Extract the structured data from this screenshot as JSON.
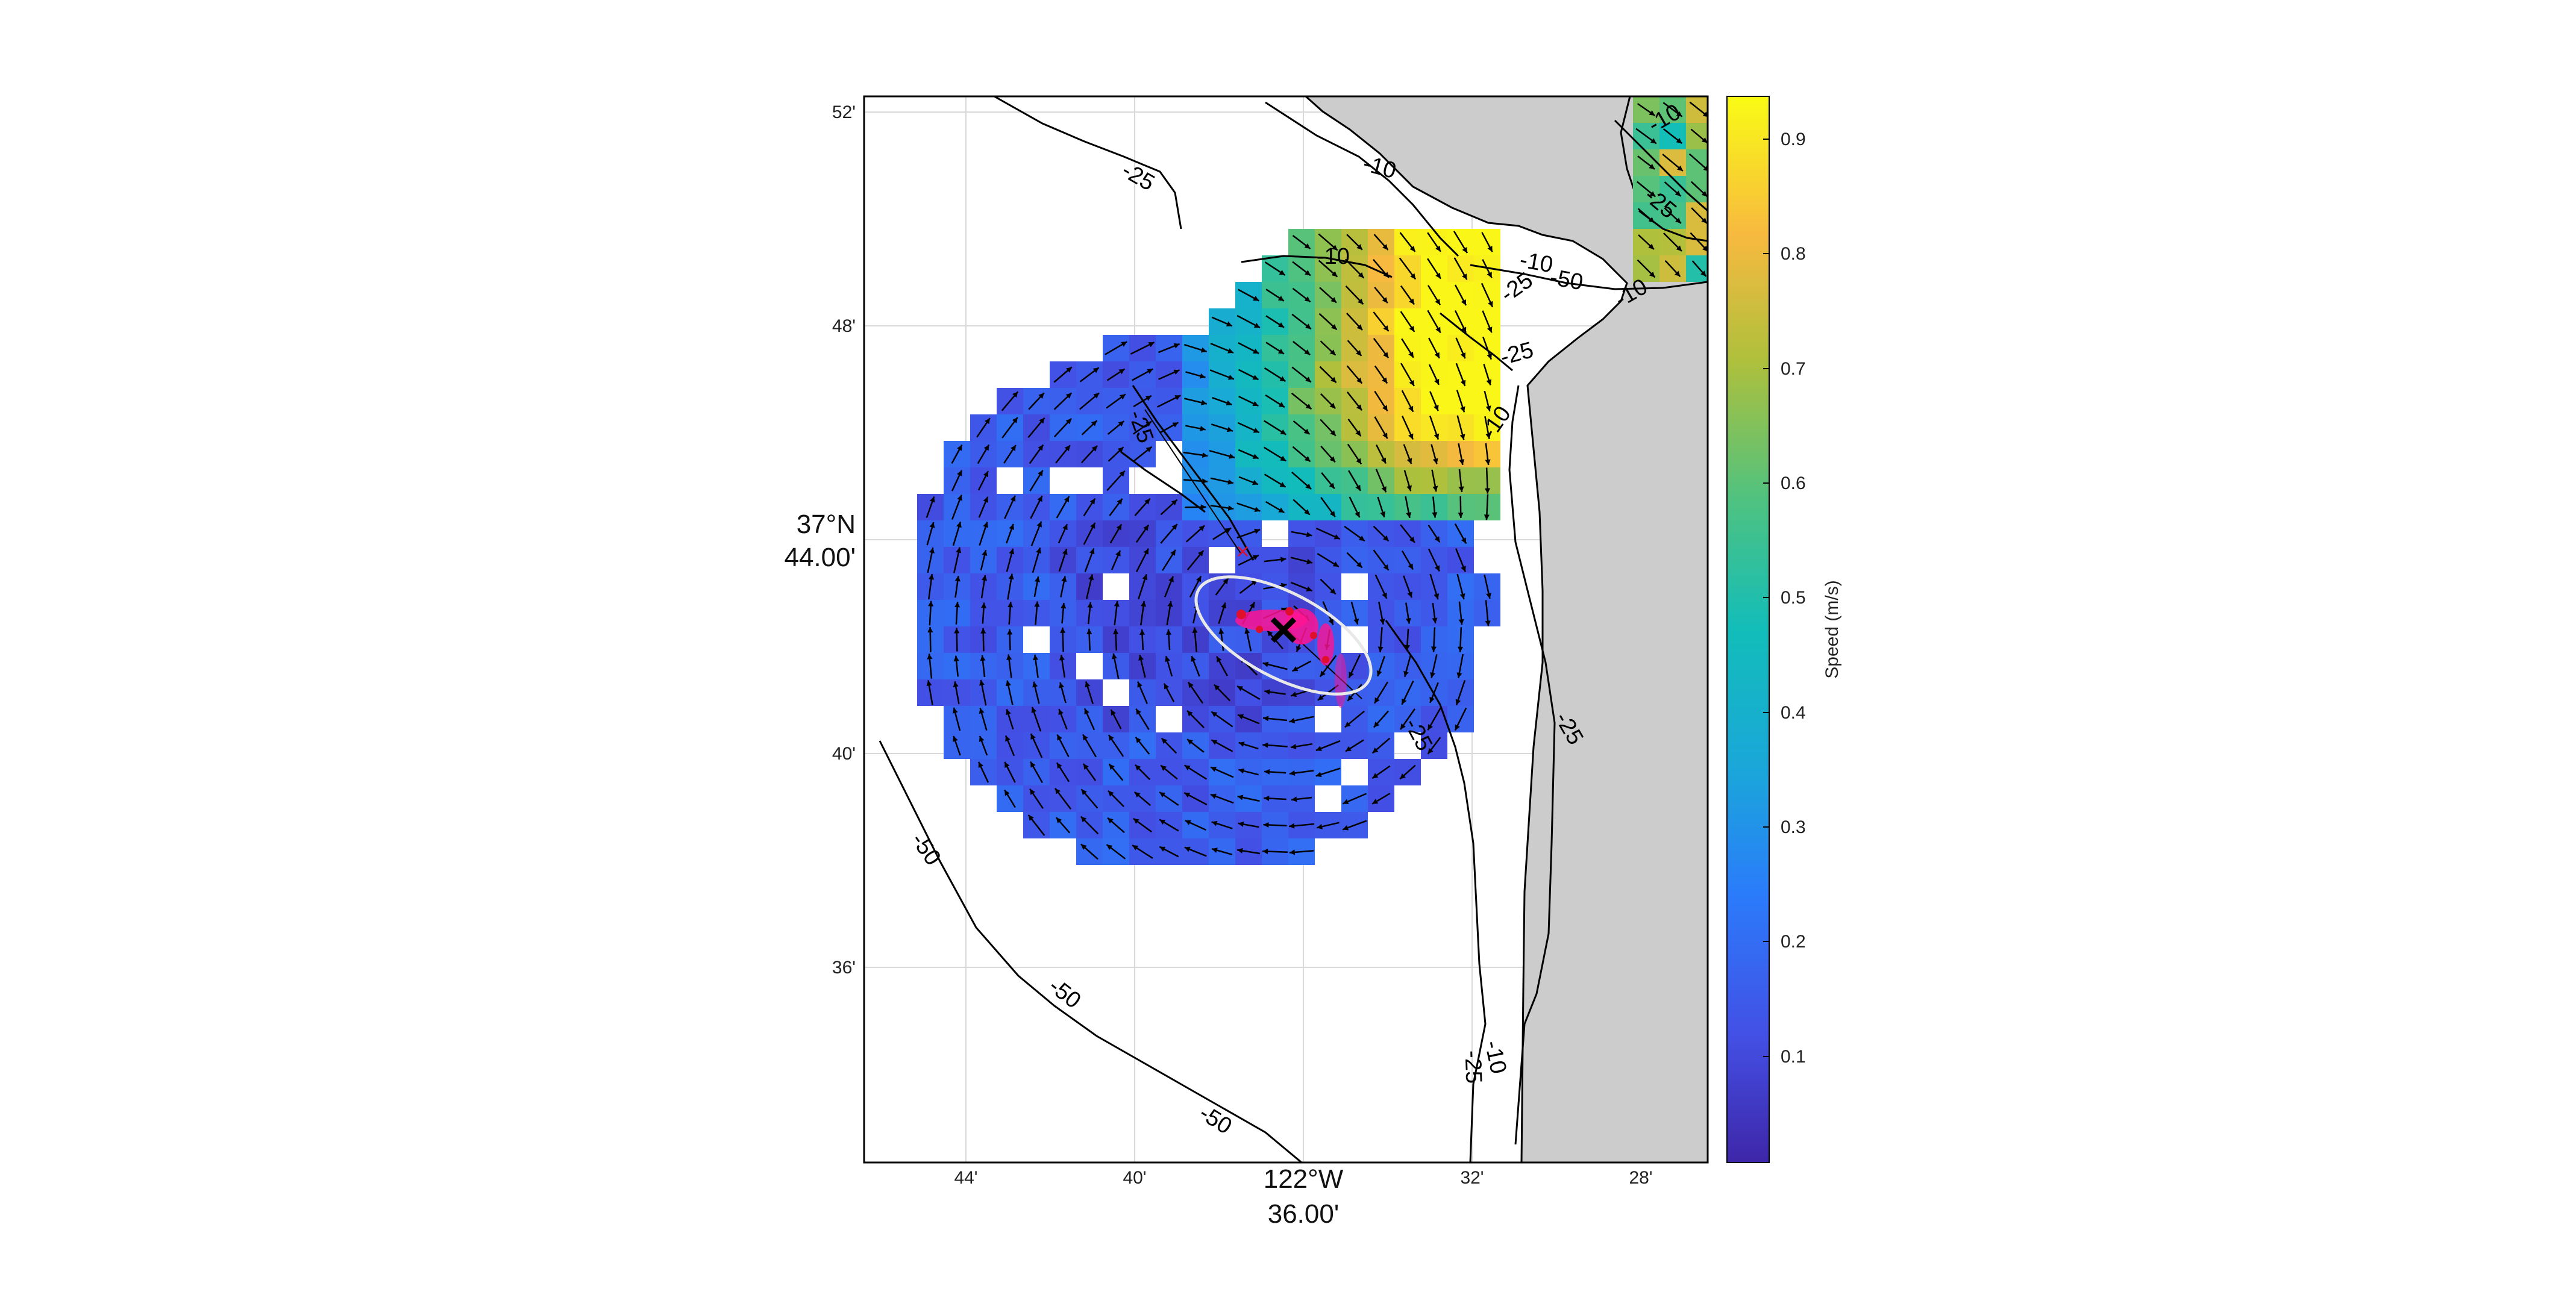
{
  "map": {
    "lon_ticks": [
      "44'",
      "40'",
      "32'",
      "28'"
    ],
    "lon_center_deg": "122°W",
    "lon_center_min": "36.00'",
    "lat_ticks": [
      "52'",
      "48'",
      "40'",
      "36'"
    ],
    "lat_center_deg": "37°N",
    "lat_center_min": "44.00'",
    "contour_labels": [
      "-25",
      "-10",
      "-10",
      "-25",
      "-10",
      "-50",
      "-10",
      "-25",
      "-25",
      "-10",
      "-10",
      "-25",
      "-50",
      "-50",
      "-50",
      "-10",
      "-25"
    ],
    "land_color": "#cccccc",
    "colors": {
      "low": "#3e26a8",
      "high": "#f9fb15"
    }
  },
  "colorbar": {
    "label": "Speed (m/s)",
    "ticks": [
      "0.9",
      "0.8",
      "0.7",
      "0.6",
      "0.5",
      "0.4",
      "0.3",
      "0.2",
      "0.1"
    ],
    "min": 0.01,
    "max": 0.94
  }
}
